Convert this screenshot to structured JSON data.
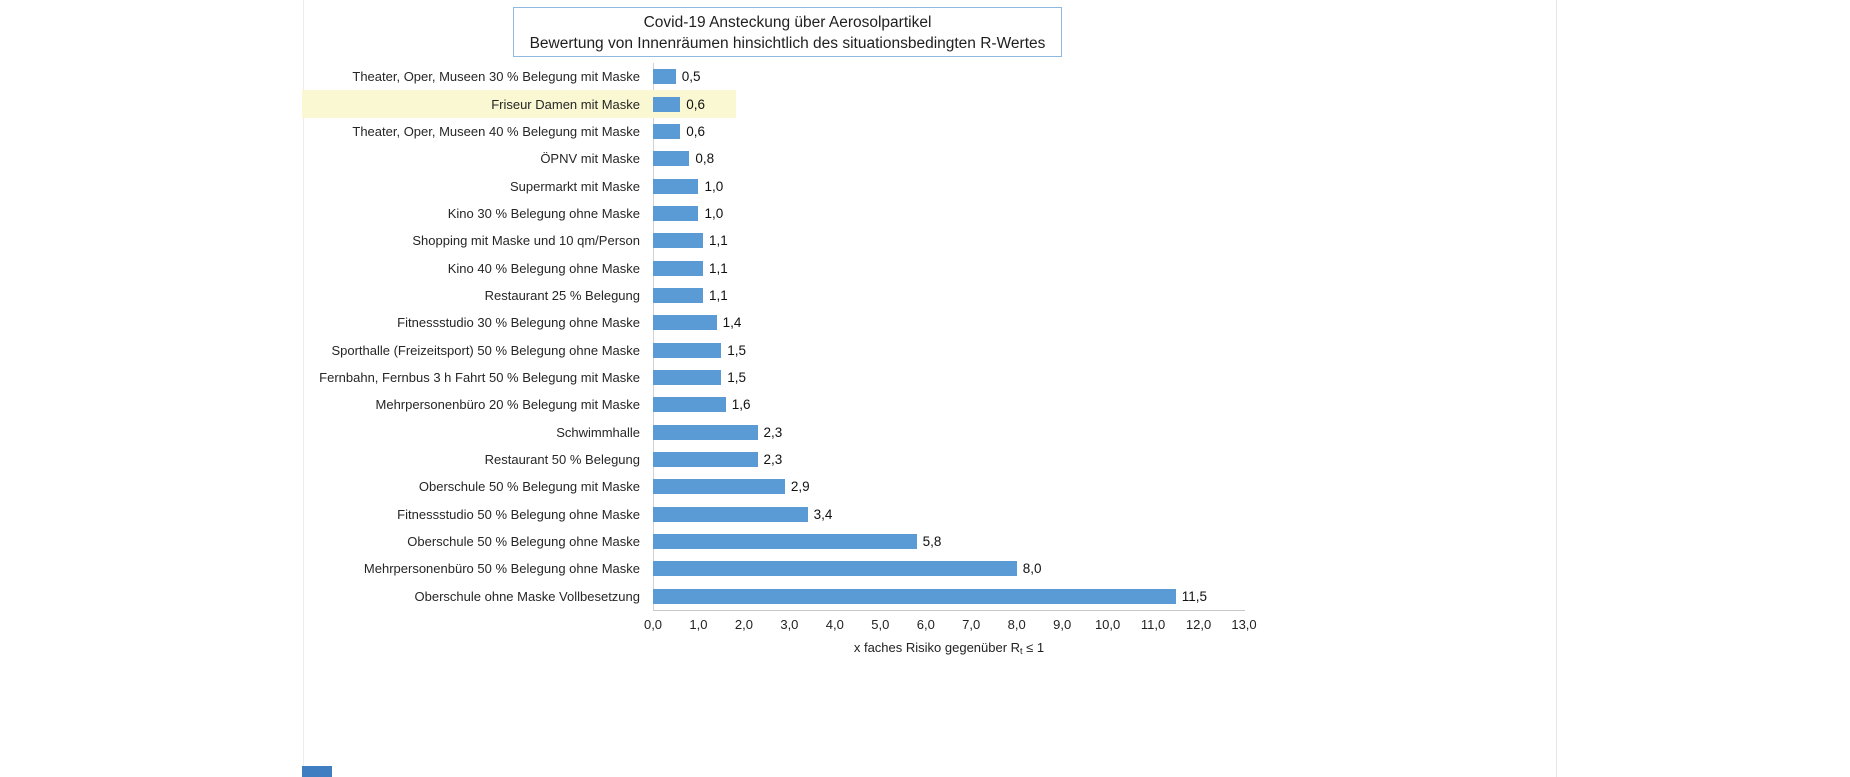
{
  "chart_data": {
    "type": "bar",
    "orientation": "horizontal",
    "title_line1": "Covid-19 Ansteckung über Aerosolpartikel",
    "title_line2": "Bewertung von Innenräumen hinsichtlich des situationsbedingten R-Wertes",
    "categories": [
      "Theater, Oper, Museen 30 % Belegung mit Maske",
      "Friseur Damen mit Maske",
      "Theater, Oper, Museen 40 % Belegung mit Maske",
      "ÖPNV mit Maske",
      "Supermarkt mit Maske",
      "Kino 30 % Belegung ohne Maske",
      "Shopping mit Maske und 10 qm/Person",
      "Kino 40 % Belegung ohne Maske",
      "Restaurant 25 % Belegung",
      "Fitnessstudio 30 % Belegung ohne Maske",
      "Sporthalle (Freizeitsport) 50 % Belegung ohne Maske",
      "Fernbahn, Fernbus 3 h Fahrt 50 % Belegung mit Maske",
      "Mehrpersonenbüro 20 % Belegung mit Maske",
      "Schwimmhalle",
      "Restaurant 50 % Belegung",
      "Oberschule 50 % Belegung mit Maske",
      "Fitnessstudio 50 % Belegung ohne Maske",
      "Oberschule 50 % Belegung ohne Maske",
      "Mehrpersonenbüro 50 % Belegung ohne Maske",
      "Oberschule ohne Maske Vollbesetzung"
    ],
    "values": [
      0.5,
      0.6,
      0.6,
      0.8,
      1.0,
      1.0,
      1.1,
      1.1,
      1.1,
      1.4,
      1.5,
      1.5,
      1.6,
      2.3,
      2.3,
      2.9,
      3.4,
      5.8,
      8.0,
      11.5
    ],
    "value_labels": [
      "0,5",
      "0,6",
      "0,6",
      "0,8",
      "1,0",
      "1,0",
      "1,1",
      "1,1",
      "1,1",
      "1,4",
      "1,5",
      "1,5",
      "1,6",
      "2,3",
      "2,3",
      "2,9",
      "3,4",
      "5,8",
      "8,0",
      "11,5"
    ],
    "highlight_index": 1,
    "highlight_color": "#f9f8d2",
    "bar_color": "#5b9bd5",
    "x_ticks": [
      "0,0",
      "1,0",
      "2,0",
      "3,0",
      "4,0",
      "5,0",
      "6,0",
      "7,0",
      "8,0",
      "9,0",
      "10,0",
      "11,0",
      "12,0",
      "13,0"
    ],
    "xlim": [
      0,
      13
    ],
    "xlabel_pre": "x faches Risiko gegenüber R",
    "xlabel_sub": "t",
    "xlabel_post": " ≤ 1",
    "artifact_color": "#3f7fc1"
  }
}
